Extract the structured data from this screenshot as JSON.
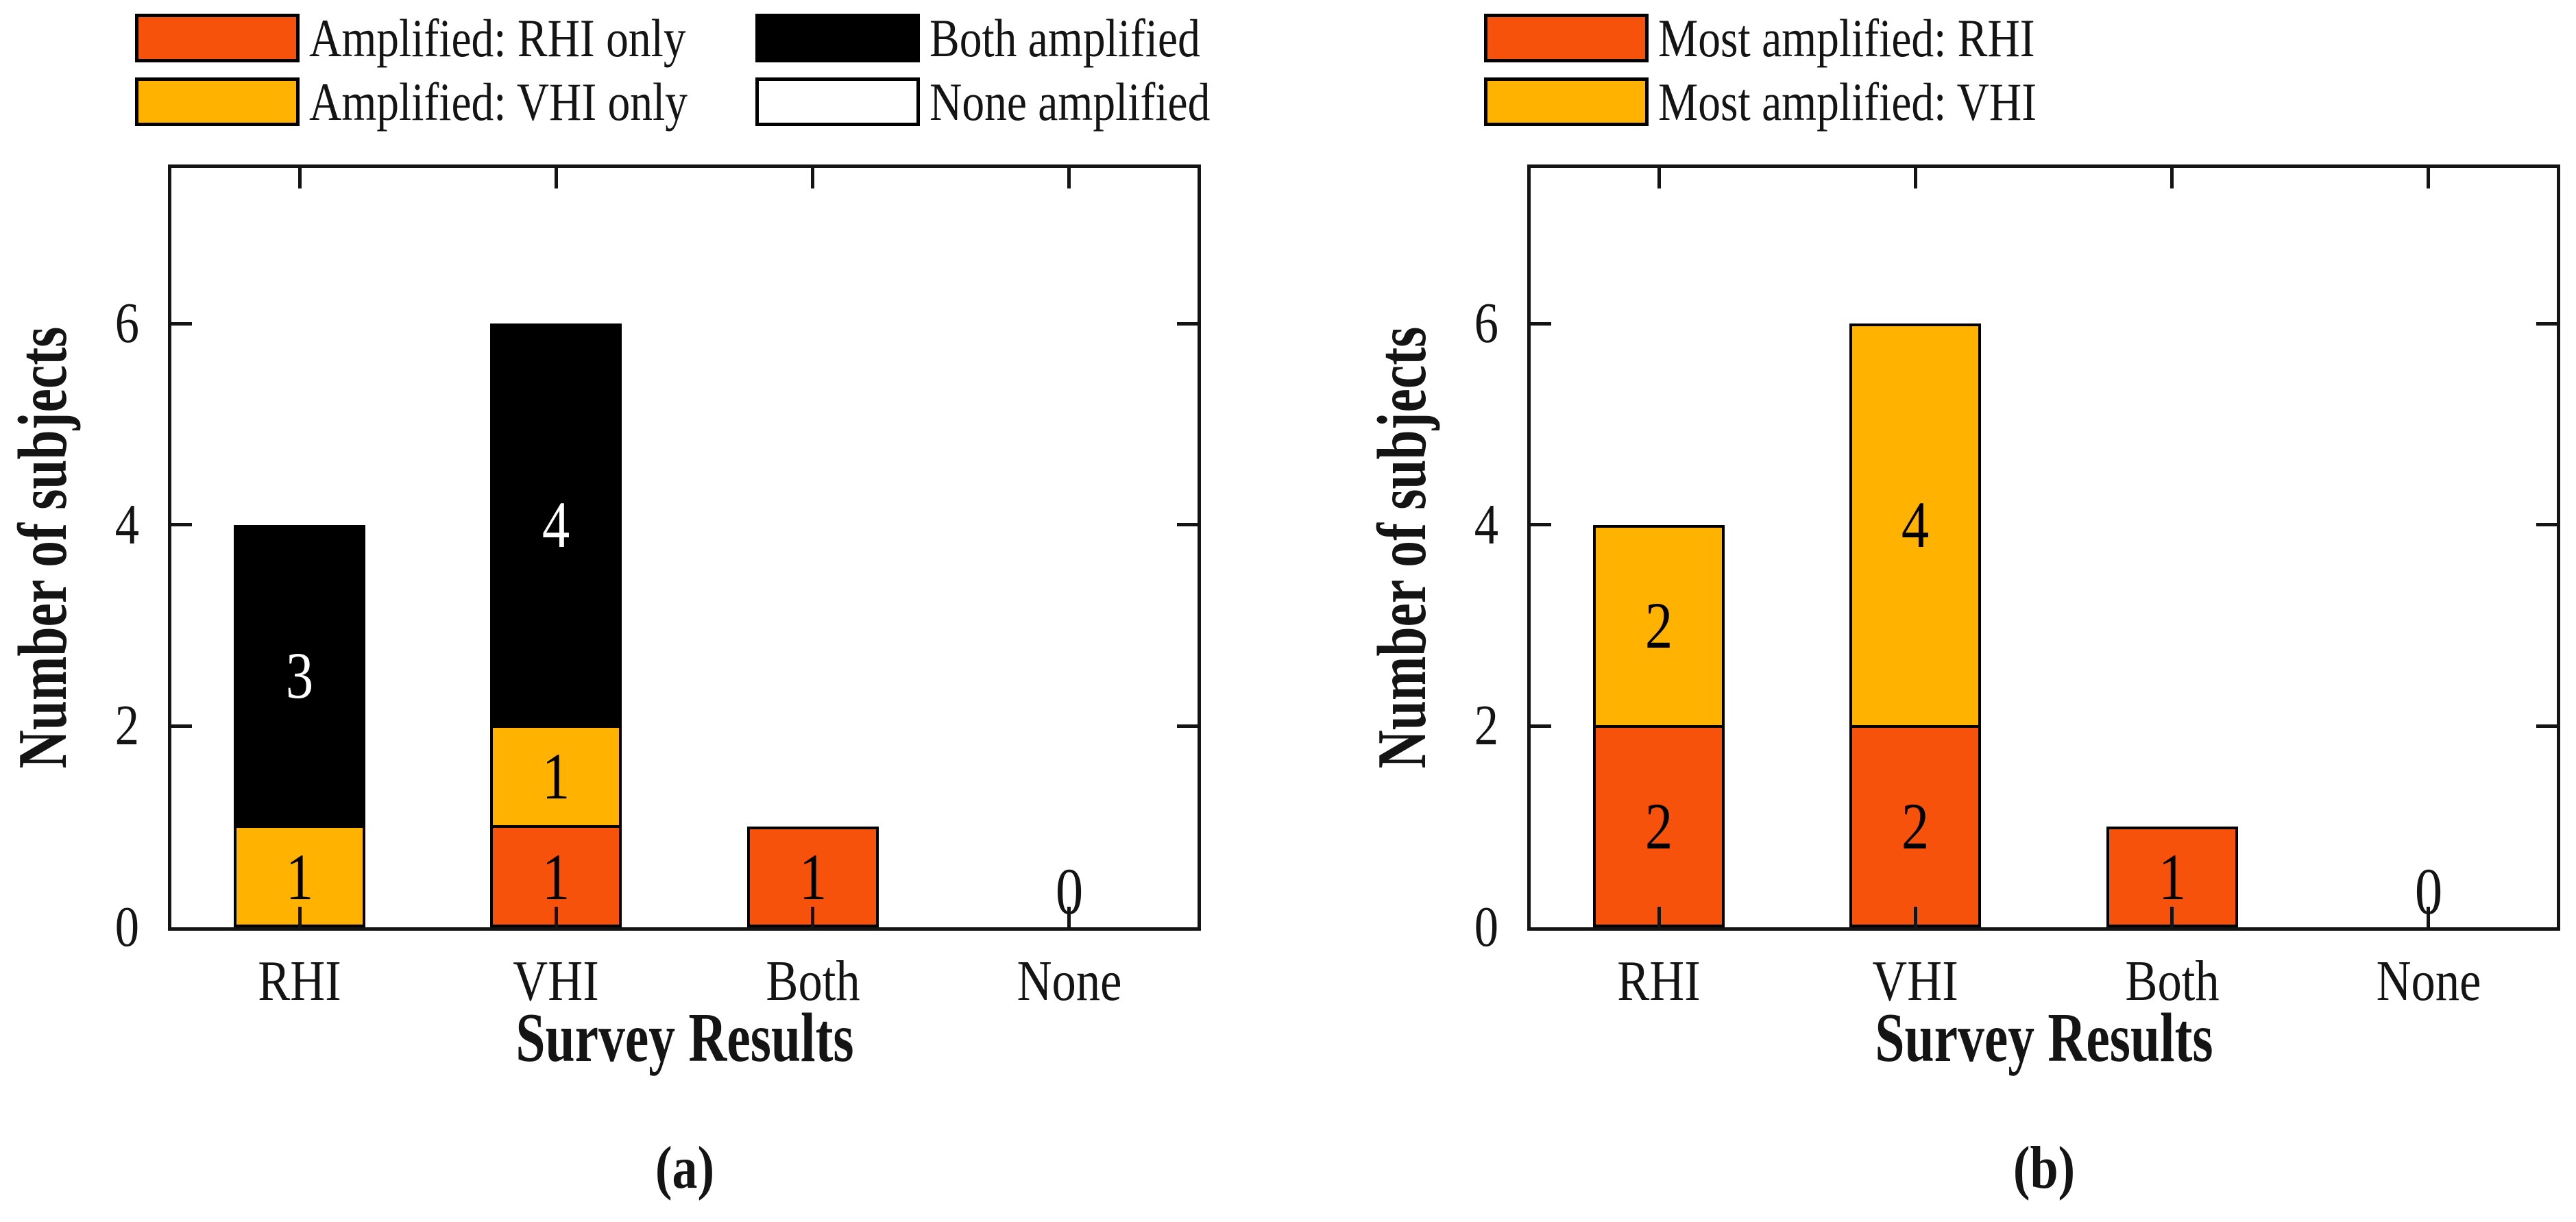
{
  "palette": {
    "orange_red": "#F6520C",
    "amber": "#FFB300",
    "black": "#000000",
    "white": "#FFFFFF",
    "axis_text": "#141414",
    "background": "#FFFFFF"
  },
  "chart_data": [
    {
      "id": "a",
      "type": "bar",
      "stacked": true,
      "caption": "(a)",
      "xlabel": "Survey Results",
      "ylabel": "Number of subjects",
      "categories": [
        "RHI",
        "VHI",
        "Both",
        "None"
      ],
      "ytick_labels": [
        "0",
        "2",
        "4",
        "6"
      ],
      "ytick_values": [
        0,
        2,
        4,
        6
      ],
      "ylim": [
        0,
        7.55
      ],
      "grid": false,
      "legend": {
        "frame": false,
        "columns": 2,
        "position": "top-left above plot"
      },
      "series": [
        {
          "name": "Amplified: RHI only",
          "color": "#F6520C",
          "label_color": "#000000",
          "values": [
            0,
            1,
            1,
            0
          ]
        },
        {
          "name": "Amplified: VHI only",
          "color": "#FFB300",
          "label_color": "#000000",
          "values": [
            1,
            1,
            0,
            0
          ]
        },
        {
          "name": "Both amplified",
          "color": "#000000",
          "label_color": "#FFFFFF",
          "values": [
            3,
            4,
            0,
            0
          ]
        },
        {
          "name": "None amplified",
          "color": "#FFFFFF",
          "label_color": "#000000",
          "values": [
            0,
            0,
            0,
            0
          ]
        }
      ],
      "bar_totals": [
        4,
        6,
        1,
        0
      ],
      "zero_label": "0"
    },
    {
      "id": "b",
      "type": "bar",
      "stacked": true,
      "caption": "(b)",
      "xlabel": "Survey Results",
      "ylabel": "Number of subjects",
      "categories": [
        "RHI",
        "VHI",
        "Both",
        "None"
      ],
      "ytick_labels": [
        "0",
        "2",
        "4",
        "6"
      ],
      "ytick_values": [
        0,
        2,
        4,
        6
      ],
      "ylim": [
        0,
        7.55
      ],
      "grid": false,
      "legend": {
        "frame": false,
        "columns": 1,
        "position": "top-left above plot"
      },
      "series": [
        {
          "name": "Most amplified: RHI",
          "color": "#F6520C",
          "label_color": "#000000",
          "values": [
            2,
            2,
            1,
            0
          ]
        },
        {
          "name": "Most amplified: VHI",
          "color": "#FFB300",
          "label_color": "#000000",
          "values": [
            2,
            4,
            0,
            0
          ]
        }
      ],
      "bar_totals": [
        4,
        6,
        1,
        0
      ],
      "zero_label": "0"
    }
  ]
}
